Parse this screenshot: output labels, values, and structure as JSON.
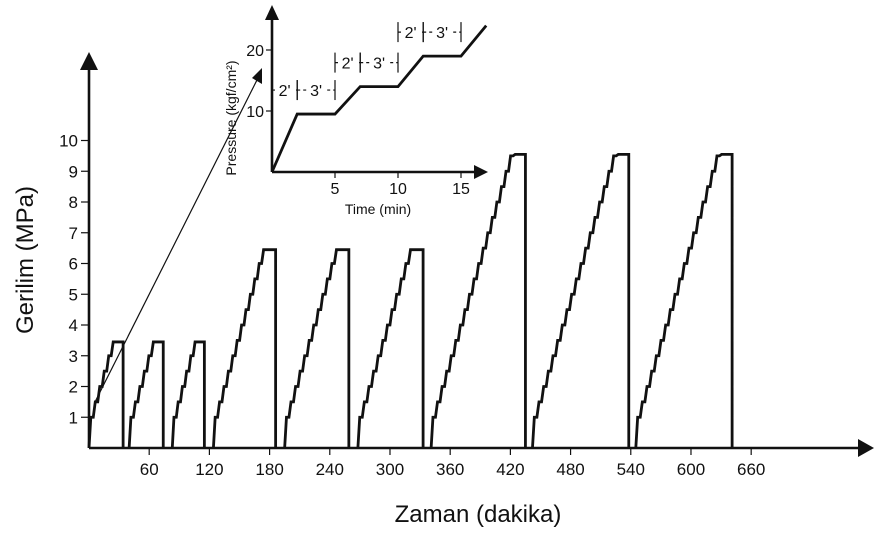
{
  "chart_data": [
    {
      "type": "line",
      "title": "",
      "xlabel": "Zaman (dakika)",
      "ylabel": "Gerilim (MPa)",
      "xlim": [
        0,
        720
      ],
      "ylim": [
        0,
        10.5
      ],
      "x_ticks": [
        60,
        120,
        180,
        240,
        300,
        360,
        420,
        480,
        540,
        600,
        660
      ],
      "y_ticks": [
        1,
        2,
        3,
        4,
        5,
        6,
        7,
        8,
        9,
        10
      ],
      "grid": false,
      "legend": "none",
      "series": [
        {
          "description_free": true,
          "cycles": [
            {
              "start": 0,
              "peak_end": 34,
              "peak": 3.45,
              "step": 0.5
            },
            {
              "start": 40,
              "peak_end": 74,
              "peak": 3.45,
              "step": 0.5
            },
            {
              "start": 83,
              "peak_end": 115,
              "peak": 3.45,
              "step": 0.5
            },
            {
              "start": 124,
              "peak_end": 186,
              "peak": 6.45,
              "step": 0.5
            },
            {
              "start": 195,
              "peak_end": 259,
              "peak": 6.45,
              "step": 0.5
            },
            {
              "start": 268,
              "peak_end": 333,
              "peak": 6.45,
              "step": 0.5
            },
            {
              "start": 341,
              "peak_end": 435,
              "peak": 9.55,
              "step": 0.5
            },
            {
              "start": 442,
              "peak_end": 538,
              "peak": 9.55,
              "step": 0.5
            },
            {
              "start": 545,
              "peak_end": 641,
              "peak": 9.55,
              "step": 0.5
            }
          ]
        }
      ]
    },
    {
      "type": "line",
      "title": "",
      "xlabel": "Time (min)",
      "ylabel": "Pressure (kgf/cm²)",
      "xlim": [
        0,
        17
      ],
      "ylim": [
        0,
        25
      ],
      "x_ticks": [
        5,
        10,
        15
      ],
      "y_ticks": [
        10,
        20
      ],
      "grid": false,
      "legend": "none",
      "series": [
        {
          "x": [
            0,
            2,
            5,
            7,
            10,
            12,
            15,
            17
          ],
          "y": [
            0,
            9.5,
            9.5,
            14,
            14,
            19,
            19,
            24
          ]
        }
      ],
      "annotations": [
        {
          "text": "2'",
          "from": 0,
          "to": 2
        },
        {
          "text": "3'",
          "from": 2,
          "to": 5
        },
        {
          "text": "2'",
          "from": 5,
          "to": 7
        },
        {
          "text": "3'",
          "from": 7,
          "to": 10
        },
        {
          "text": "2'",
          "from": 10,
          "to": 12
        },
        {
          "text": "3'",
          "from": 12,
          "to": 15
        }
      ]
    }
  ]
}
